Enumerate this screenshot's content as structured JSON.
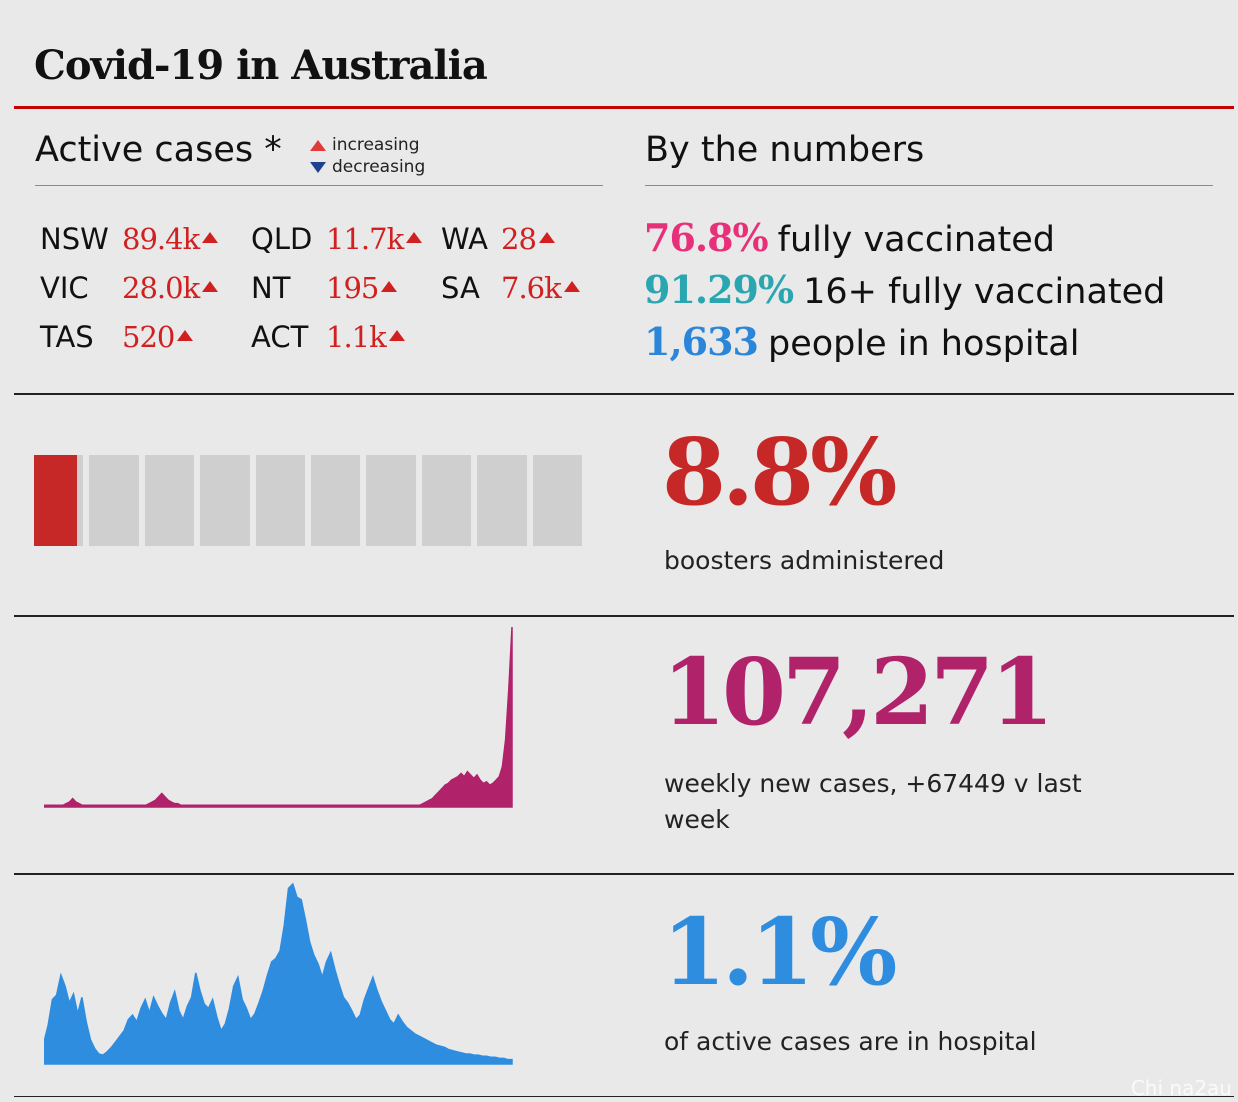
{
  "title": "Covid-19 in Australia",
  "active_cases": {
    "heading": "Active cases *",
    "legend_increasing": "increasing",
    "legend_decreasing": "decreasing",
    "states": [
      {
        "state": "NSW",
        "value": "89.4k",
        "trend": "increasing"
      },
      {
        "state": "QLD",
        "value": "11.7k",
        "trend": "increasing"
      },
      {
        "state": "WA",
        "value": "28",
        "trend": "increasing"
      },
      {
        "state": "VIC",
        "value": "28.0k",
        "trend": "increasing"
      },
      {
        "state": "NT",
        "value": "195",
        "trend": "increasing"
      },
      {
        "state": "SA",
        "value": "7.6k",
        "trend": "increasing"
      },
      {
        "state": "TAS",
        "value": "520",
        "trend": "increasing"
      },
      {
        "state": "ACT",
        "value": "1.1k",
        "trend": "increasing"
      }
    ]
  },
  "by_numbers": {
    "heading": "By the numbers",
    "lines": [
      {
        "figure": "76.8%",
        "text": "fully vaccinated",
        "color": "#e8307a"
      },
      {
        "figure": "91.29%",
        "text": "16+ fully vaccinated",
        "color": "#2aa6b0"
      },
      {
        "figure": "1,633",
        "text": "people in hospital",
        "color": "#2b86d9"
      }
    ]
  },
  "boosters": {
    "value": "8.8%",
    "label": "boosters administered",
    "color": "#c62828"
  },
  "weekly": {
    "value": "107,271",
    "label": "weekly new cases, +67449 v last week",
    "color": "#b0226a"
  },
  "hospital": {
    "value": "1.1%",
    "label": "of active cases are in hospital",
    "color": "#2f8de0"
  },
  "watermark": "Chi na2au",
  "chart_data": [
    {
      "type": "bar",
      "description": "waffle strip of 10 boxes; first box partially filled representing booster share",
      "segments": 10,
      "filled_fraction": 0.088,
      "fill_color": "#c62828",
      "empty_color": "#cfcfcf"
    },
    {
      "type": "area",
      "series": [
        {
          "values": [
            1,
            1,
            1,
            1,
            1,
            1,
            1,
            2,
            3,
            5,
            3,
            2,
            1,
            1,
            1,
            1,
            1,
            1,
            1,
            1,
            1,
            1,
            1,
            1,
            1,
            1,
            1,
            1,
            1,
            1,
            1,
            1,
            1,
            2,
            3,
            4,
            6,
            8,
            6,
            4,
            3,
            2,
            2,
            1,
            1,
            1,
            1,
            1,
            1,
            1,
            1,
            1,
            1,
            1,
            1,
            1,
            1,
            1,
            1,
            1,
            1,
            1,
            1,
            1,
            1,
            1,
            1,
            1,
            1,
            1,
            1,
            1,
            1,
            1,
            1,
            1,
            1,
            1,
            1,
            1,
            1,
            1,
            1,
            1,
            1,
            1,
            1,
            1,
            1,
            1,
            1,
            1,
            1,
            1,
            1,
            1,
            1,
            1,
            1,
            1,
            1,
            1,
            1,
            1,
            1,
            1,
            1,
            1,
            1,
            1,
            1,
            1,
            1,
            1,
            1,
            1,
            1,
            1,
            1,
            2,
            3,
            4,
            5,
            7,
            9,
            11,
            13,
            14,
            16,
            17,
            18,
            20,
            18,
            21,
            19,
            17,
            19,
            16,
            14,
            15,
            13,
            14,
            16,
            18,
            24,
            40,
            70,
            107
          ]
        }
      ],
      "color": "#b0226a"
    },
    {
      "type": "area",
      "series": [
        {
          "values": [
            20,
            35,
            58,
            62,
            80,
            70,
            55,
            63,
            45,
            60,
            38,
            22,
            14,
            9,
            8,
            11,
            15,
            20,
            25,
            30,
            40,
            44,
            38,
            50,
            58,
            46,
            60,
            52,
            45,
            40,
            55,
            65,
            48,
            40,
            52,
            60,
            82,
            66,
            54,
            50,
            58,
            42,
            30,
            36,
            50,
            70,
            78,
            58,
            50,
            40,
            45,
            55,
            66,
            80,
            92,
            95,
            102,
            125,
            158,
            162,
            150,
            148,
            130,
            110,
            98,
            90,
            78,
            92,
            100,
            85,
            72,
            60,
            55,
            48,
            40,
            44,
            58,
            68,
            78,
            66,
            56,
            48,
            40,
            36,
            44,
            38,
            33,
            30,
            27,
            25,
            23,
            21,
            19,
            17,
            16,
            15,
            13,
            12,
            11,
            10,
            9,
            9,
            8,
            8,
            7,
            7,
            6,
            6,
            5,
            5,
            4,
            4
          ]
        }
      ],
      "color": "#2f8de0"
    }
  ]
}
